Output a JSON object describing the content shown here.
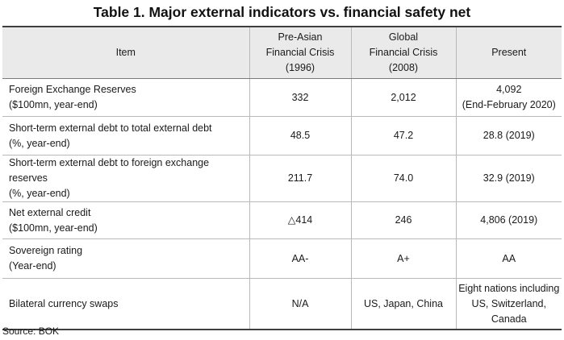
{
  "title": "Table 1. Major external indicators vs. financial safety net",
  "table": {
    "headers": [
      [
        "Item"
      ],
      [
        "Pre-Asian",
        "Financial Crisis",
        "(1996)"
      ],
      [
        "Global",
        "Financial Crisis",
        "(2008)"
      ],
      [
        "Present"
      ]
    ],
    "rows": [
      {
        "item": [
          "Foreign Exchange Reserves",
          "($100mn, year-end)"
        ],
        "pre_asian": [
          "332"
        ],
        "global": [
          "2,012"
        ],
        "present": [
          "4,092",
          "(End-February 2020)"
        ]
      },
      {
        "item": [
          "Short-term external debt to total external debt",
          "(%, year-end)"
        ],
        "pre_asian": [
          "48.5"
        ],
        "global": [
          "47.2"
        ],
        "present": [
          "28.8 (2019)"
        ]
      },
      {
        "item": [
          "Short-term external debt to foreign exchange reserves",
          "(%, year-end)"
        ],
        "pre_asian": [
          "211.7"
        ],
        "global": [
          "74.0"
        ],
        "present": [
          "32.9 (2019)"
        ]
      },
      {
        "item": [
          "Net external credit",
          "($100mn, year-end)"
        ],
        "pre_asian": [
          "△414"
        ],
        "global": [
          "246"
        ],
        "present": [
          "4,806 (2019)"
        ]
      },
      {
        "item": [
          "Sovereign rating",
          "(Year-end)"
        ],
        "pre_asian": [
          "AA-"
        ],
        "global": [
          "A+"
        ],
        "present": [
          "AA"
        ]
      },
      {
        "item": [
          "Bilateral currency swaps"
        ],
        "pre_asian": [
          "N/A"
        ],
        "global": [
          "US, Japan, China"
        ],
        "present": [
          "Eight nations including",
          "US, Switzerland,",
          "Canada"
        ]
      }
    ]
  },
  "source": "Source: BOK"
}
